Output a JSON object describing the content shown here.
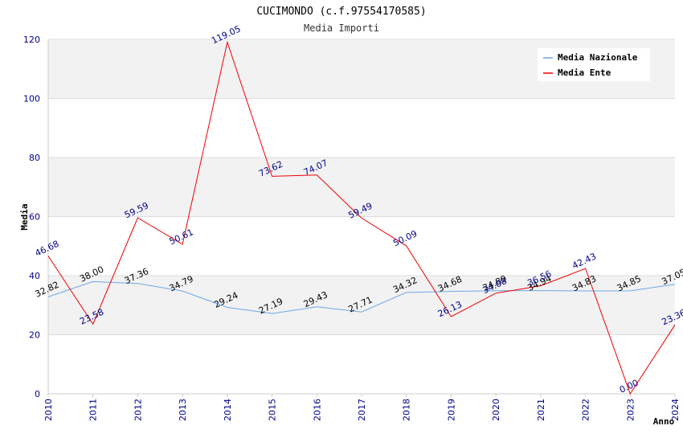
{
  "chart_data": {
    "type": "line",
    "title": "CUCIMONDO (c.f.97554170585)",
    "subtitle": "Media Importi",
    "xlabel": "Anno",
    "ylabel": "Media",
    "ylim": [
      0,
      120
    ],
    "yticks": [
      "0",
      "20",
      "40",
      "60",
      "80",
      "100",
      "120"
    ],
    "categories": [
      "2010",
      "2011",
      "2012",
      "2013",
      "2014",
      "2015",
      "2016",
      "2017",
      "2018",
      "2019",
      "2020",
      "2021",
      "2022",
      "2023",
      "2024"
    ],
    "series": [
      {
        "name": "Media Nazionale",
        "color": "#6aa8e8",
        "label_color": "#000000",
        "values": [
          32.82,
          38.0,
          37.36,
          34.79,
          29.24,
          27.19,
          29.43,
          27.71,
          34.32,
          34.68,
          34.89,
          34.94,
          34.83,
          34.85,
          37.05
        ],
        "labels": [
          "32.82",
          "38.00",
          "37.36",
          "34.79",
          "29.24",
          "27.19",
          "29.43",
          "27.71",
          "34.32",
          "34.68",
          "34.89",
          "34.94",
          "34.83",
          "34.85",
          "37.05"
        ]
      },
      {
        "name": "Media Ente",
        "color": "#ee0000",
        "label_color": "#00008b",
        "values": [
          46.68,
          23.58,
          59.59,
          50.61,
          119.05,
          73.62,
          74.07,
          59.49,
          50.09,
          26.13,
          34.08,
          36.56,
          42.43,
          0.0,
          23.36
        ],
        "labels": [
          "46.68",
          "23.58",
          "59.59",
          "50.61",
          "119.05",
          "73.62",
          "74.07",
          "59.49",
          "50.09",
          "26.13",
          "34.08",
          "36.56",
          "42.43",
          "0.00",
          "23.36"
        ]
      }
    ]
  }
}
